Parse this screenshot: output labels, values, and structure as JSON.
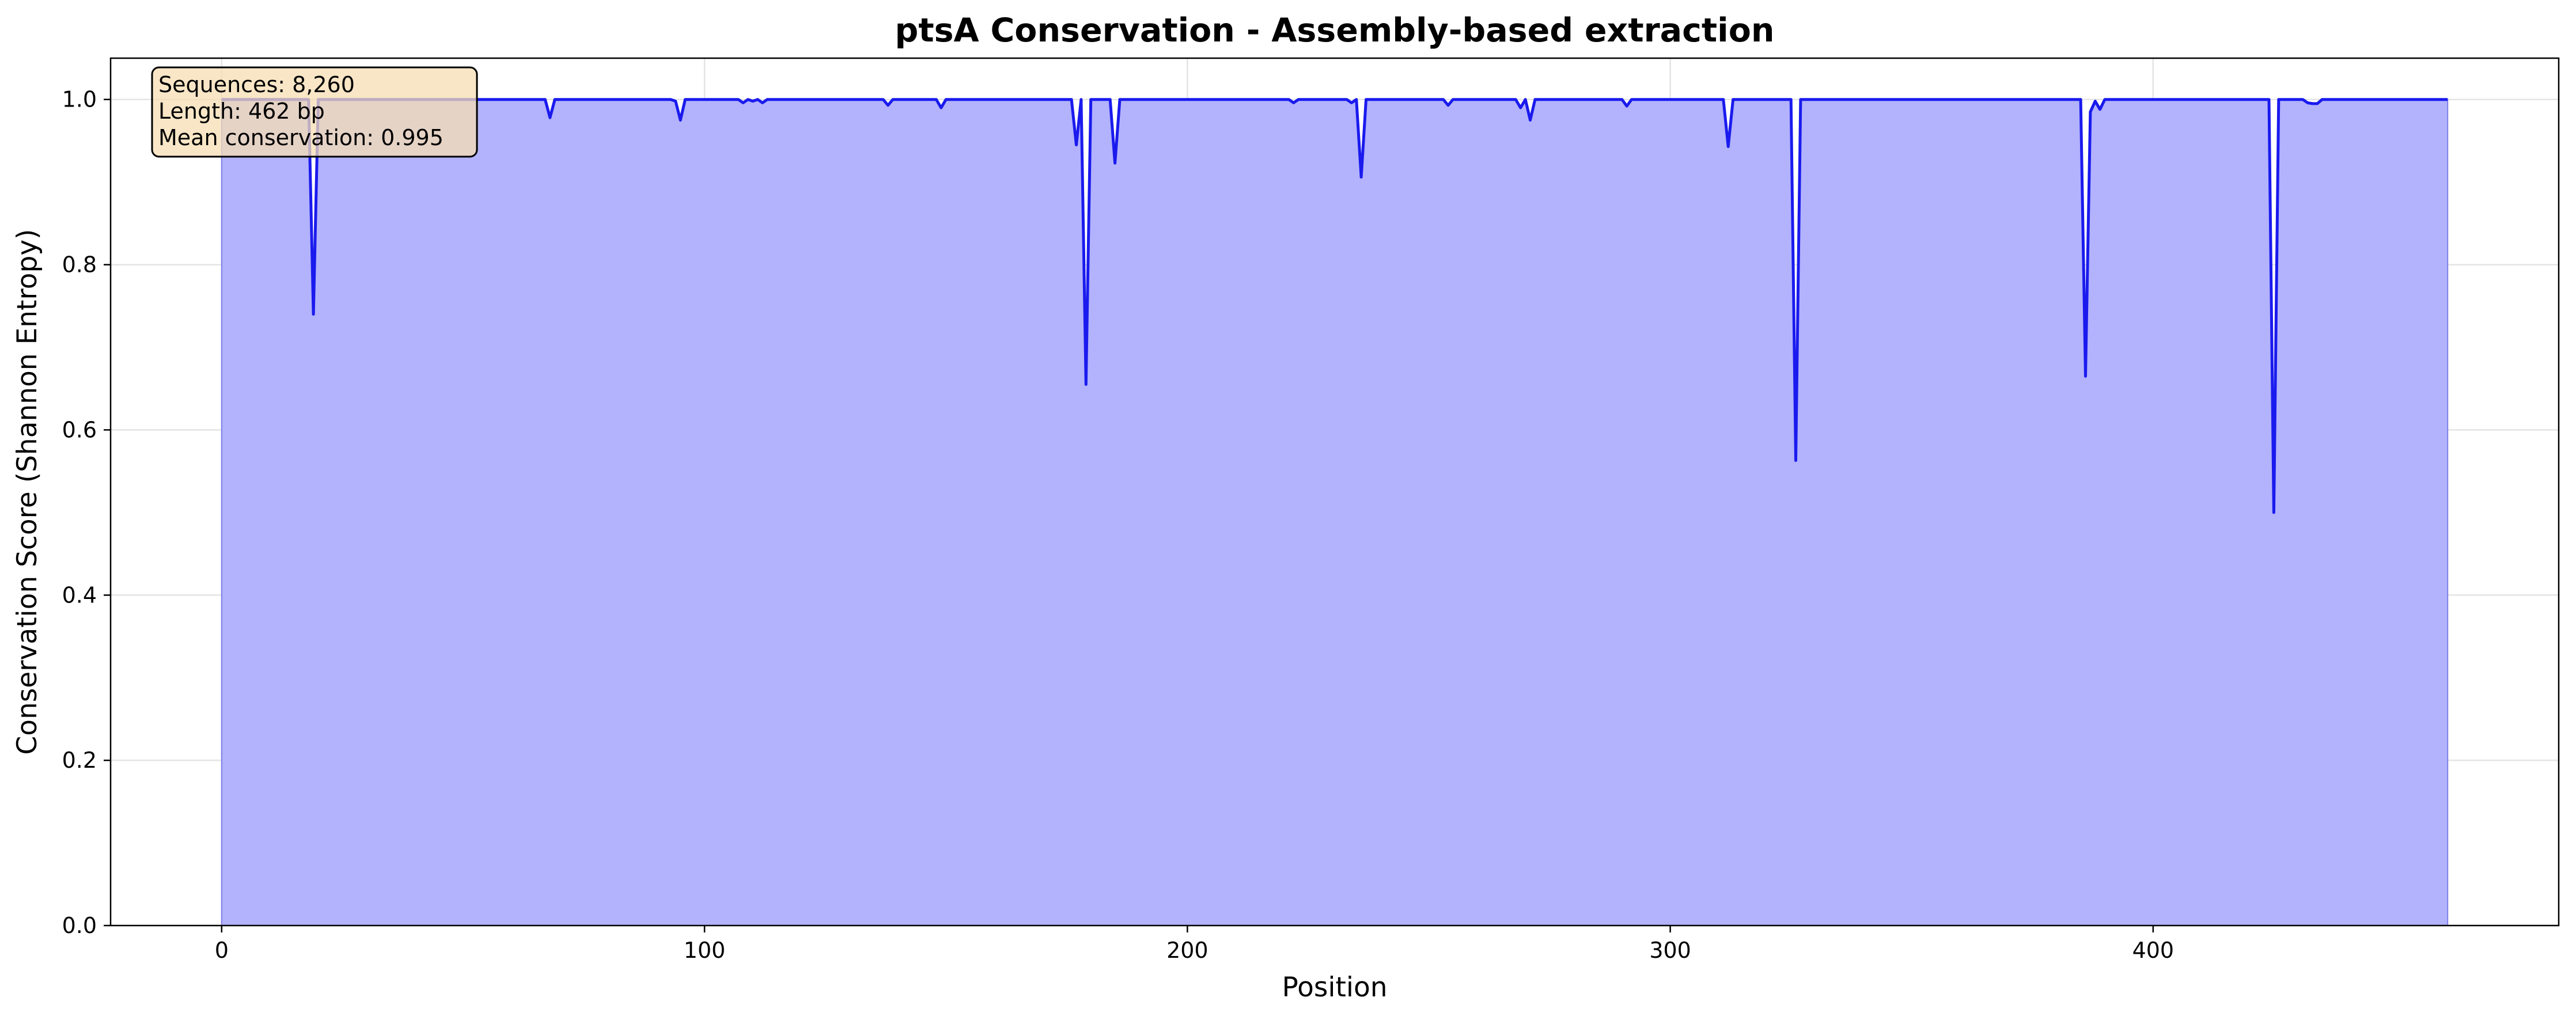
{
  "colors": {
    "line": "#1a1aee",
    "fill": "#b2b2fd",
    "fill_edge": "#7f7fef",
    "grid": "#e4e4e4",
    "stats_bg": "#f5deb3",
    "stats_border": "#000000"
  },
  "chart_data": {
    "type": "area",
    "title": "ptsA Conservation - Assembly-based extraction",
    "xlabel": "Position",
    "ylabel": "Conservation Score (Shannon Entropy)",
    "xlim": [
      -23,
      484
    ],
    "ylim": [
      0.0,
      1.05
    ],
    "xticks": [
      0,
      100,
      200,
      300,
      400
    ],
    "yticks": [
      0.0,
      0.2,
      0.4,
      0.6,
      0.8,
      1.0
    ],
    "grid": true,
    "x_start": 0,
    "x_end": 461,
    "baseline": 1.0,
    "dips": [
      {
        "x": 19,
        "y": 0.74
      },
      {
        "x": 68,
        "y": 0.978
      },
      {
        "x": 94,
        "y": 0.998
      },
      {
        "x": 95,
        "y": 0.975
      },
      {
        "x": 108,
        "y": 0.996
      },
      {
        "x": 110,
        "y": 0.998
      },
      {
        "x": 112,
        "y": 0.996
      },
      {
        "x": 138,
        "y": 0.993
      },
      {
        "x": 149,
        "y": 0.99
      },
      {
        "x": 177,
        "y": 0.945
      },
      {
        "x": 178,
        "y": 1.0
      },
      {
        "x": 179,
        "y": 0.655
      },
      {
        "x": 185,
        "y": 0.923
      },
      {
        "x": 222,
        "y": 0.996
      },
      {
        "x": 234,
        "y": 0.996
      },
      {
        "x": 236,
        "y": 0.906
      },
      {
        "x": 254,
        "y": 0.993
      },
      {
        "x": 269,
        "y": 0.99
      },
      {
        "x": 271,
        "y": 0.975
      },
      {
        "x": 291,
        "y": 0.992
      },
      {
        "x": 312,
        "y": 0.943
      },
      {
        "x": 326,
        "y": 0.563
      },
      {
        "x": 386,
        "y": 0.665
      },
      {
        "x": 387,
        "y": 0.985
      },
      {
        "x": 388,
        "y": 0.998
      },
      {
        "x": 389,
        "y": 0.988
      },
      {
        "x": 425,
        "y": 0.5
      },
      {
        "x": 432,
        "y": 0.996
      },
      {
        "x": 433,
        "y": 0.995
      },
      {
        "x": 434,
        "y": 0.995
      }
    ],
    "stats": {
      "sequences": "Sequences: 8,260",
      "length": "Length: 462 bp",
      "mean": "Mean conservation: 0.995"
    }
  }
}
